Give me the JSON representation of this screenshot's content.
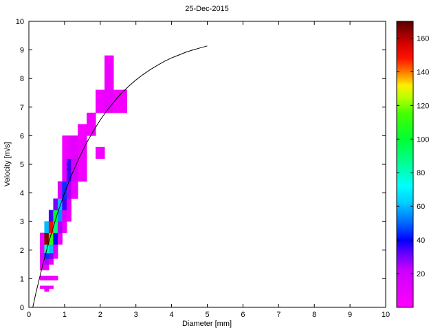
{
  "chart_data": {
    "type": "heatmap",
    "title": "25-Dec-2015",
    "xlabel": "Diameter [mm]",
    "ylabel": "Velocity [m/s]",
    "xlim": [
      0,
      10
    ],
    "ylim": [
      0,
      10
    ],
    "x_ticks": [
      0,
      1,
      2,
      3,
      4,
      5,
      6,
      7,
      8,
      9,
      10
    ],
    "y_ticks": [
      0,
      1,
      2,
      3,
      4,
      5,
      6,
      7,
      8,
      9,
      10
    ],
    "grid": false,
    "colors": {
      "background": "#ffffff",
      "axis": "#000000",
      "curve": "#000000"
    },
    "colorbar": {
      "position": "right",
      "range": [
        0,
        170
      ],
      "ticks": [
        20,
        40,
        60,
        80,
        100,
        120,
        140,
        160
      ],
      "stops": [
        [
          0.0,
          "#ff00ff"
        ],
        [
          0.129,
          "#cc00ff"
        ],
        [
          0.188,
          "#6600ff"
        ],
        [
          0.235,
          "#0000ff"
        ],
        [
          0.294,
          "#0066ff"
        ],
        [
          0.365,
          "#00ccff"
        ],
        [
          0.424,
          "#00ffff"
        ],
        [
          0.5,
          "#00ff99"
        ],
        [
          0.588,
          "#00ff33"
        ],
        [
          0.676,
          "#44ff00"
        ],
        [
          0.735,
          "#bbff00"
        ],
        [
          0.776,
          "#ffee00"
        ],
        [
          0.824,
          "#ff7700"
        ],
        [
          0.871,
          "#ff1100"
        ],
        [
          0.929,
          "#cc0000"
        ],
        [
          1.0,
          "#550000"
        ]
      ]
    },
    "cells_format": [
      "diameter_left_mm",
      "velocity_bottom_ms",
      "width_mm",
      "height_ms",
      "count"
    ],
    "cells": [
      [
        0.437,
        0.55,
        0.125,
        0.1,
        4
      ],
      [
        0.312,
        0.65,
        0.125,
        0.1,
        6
      ],
      [
        0.437,
        0.65,
        0.125,
        0.1,
        8
      ],
      [
        0.562,
        0.65,
        0.125,
        0.1,
        5
      ],
      [
        0.312,
        0.95,
        0.125,
        0.15,
        7
      ],
      [
        0.437,
        0.95,
        0.125,
        0.15,
        10
      ],
      [
        0.562,
        0.95,
        0.125,
        0.15,
        6
      ],
      [
        0.687,
        0.95,
        0.125,
        0.15,
        4
      ],
      [
        0.312,
        1.3,
        0.125,
        0.2,
        5
      ],
      [
        0.437,
        1.3,
        0.125,
        0.2,
        9
      ],
      [
        0.312,
        1.5,
        0.125,
        0.2,
        12
      ],
      [
        0.437,
        1.5,
        0.125,
        0.2,
        25
      ],
      [
        0.562,
        1.5,
        0.125,
        0.2,
        10
      ],
      [
        0.312,
        1.7,
        0.125,
        0.2,
        15
      ],
      [
        0.437,
        1.7,
        0.125,
        0.2,
        45
      ],
      [
        0.562,
        1.7,
        0.125,
        0.2,
        30
      ],
      [
        0.687,
        1.7,
        0.125,
        0.2,
        8
      ],
      [
        0.312,
        1.9,
        0.125,
        0.3,
        10
      ],
      [
        0.437,
        1.9,
        0.125,
        0.3,
        80
      ],
      [
        0.562,
        1.9,
        0.125,
        0.3,
        60
      ],
      [
        0.687,
        1.9,
        0.125,
        0.3,
        15
      ],
      [
        0.312,
        2.2,
        0.125,
        0.4,
        8
      ],
      [
        0.437,
        2.2,
        0.125,
        0.4,
        165
      ],
      [
        0.562,
        2.2,
        0.125,
        0.4,
        110
      ],
      [
        0.687,
        2.2,
        0.125,
        0.4,
        40
      ],
      [
        0.812,
        2.2,
        0.125,
        0.4,
        10
      ],
      [
        0.437,
        2.6,
        0.125,
        0.4,
        60
      ],
      [
        0.562,
        2.6,
        0.125,
        0.4,
        150
      ],
      [
        0.687,
        2.6,
        0.125,
        0.4,
        90
      ],
      [
        0.812,
        2.6,
        0.125,
        0.4,
        25
      ],
      [
        0.937,
        2.6,
        0.125,
        0.4,
        8
      ],
      [
        0.562,
        3.0,
        0.125,
        0.4,
        35
      ],
      [
        0.687,
        3.0,
        0.125,
        0.4,
        100
      ],
      [
        0.812,
        3.0,
        0.125,
        0.4,
        55
      ],
      [
        0.937,
        3.0,
        0.125,
        0.4,
        15
      ],
      [
        1.062,
        3.0,
        0.125,
        0.4,
        6
      ],
      [
        0.687,
        3.4,
        0.125,
        0.4,
        30
      ],
      [
        0.812,
        3.4,
        0.125,
        0.4,
        60
      ],
      [
        0.937,
        3.4,
        0.125,
        0.4,
        35
      ],
      [
        1.062,
        3.4,
        0.125,
        0.4,
        10
      ],
      [
        0.812,
        3.8,
        0.125,
        0.6,
        15
      ],
      [
        0.937,
        3.8,
        0.125,
        0.6,
        45
      ],
      [
        1.062,
        3.8,
        0.125,
        0.6,
        25
      ],
      [
        1.187,
        3.8,
        0.188,
        0.6,
        8
      ],
      [
        0.937,
        4.4,
        0.125,
        0.8,
        10
      ],
      [
        1.062,
        4.4,
        0.125,
        0.8,
        35
      ],
      [
        1.187,
        4.4,
        0.188,
        0.8,
        18
      ],
      [
        1.375,
        4.4,
        0.25,
        0.8,
        6
      ],
      [
        0.937,
        5.2,
        0.125,
        0.8,
        5
      ],
      [
        1.062,
        5.2,
        0.125,
        0.8,
        8
      ],
      [
        1.187,
        5.2,
        0.188,
        0.8,
        12
      ],
      [
        1.375,
        5.2,
        0.25,
        0.8,
        7
      ],
      [
        1.875,
        5.2,
        0.25,
        0.4,
        5
      ],
      [
        1.375,
        6.0,
        0.25,
        0.4,
        4
      ],
      [
        1.625,
        6.0,
        0.25,
        0.8,
        5
      ],
      [
        1.875,
        6.8,
        0.25,
        0.8,
        6
      ],
      [
        2.125,
        6.8,
        0.25,
        0.8,
        9
      ],
      [
        2.375,
        6.8,
        0.375,
        0.8,
        5
      ],
      [
        2.125,
        7.6,
        0.25,
        1.2,
        7
      ]
    ],
    "curve": {
      "name": "terminal-velocity-curve",
      "color": "#000000",
      "points": [
        [
          0.11,
          0.0
        ],
        [
          0.2,
          0.52
        ],
        [
          0.4,
          1.55
        ],
        [
          0.6,
          2.46
        ],
        [
          0.8,
          3.28
        ],
        [
          1.0,
          4.0
        ],
        [
          1.2,
          4.64
        ],
        [
          1.4,
          5.2
        ],
        [
          1.6,
          5.71
        ],
        [
          1.8,
          6.15
        ],
        [
          2.0,
          6.55
        ],
        [
          2.2,
          6.9
        ],
        [
          2.4,
          7.21
        ],
        [
          2.6,
          7.49
        ],
        [
          2.8,
          7.73
        ],
        [
          3.0,
          7.95
        ],
        [
          3.2,
          8.14
        ],
        [
          3.4,
          8.31
        ],
        [
          3.6,
          8.46
        ],
        [
          3.8,
          8.6
        ],
        [
          4.0,
          8.72
        ],
        [
          4.2,
          8.82
        ],
        [
          4.4,
          8.92
        ],
        [
          4.6,
          9.0
        ],
        [
          4.8,
          9.07
        ],
        [
          5.0,
          9.14
        ]
      ]
    }
  }
}
